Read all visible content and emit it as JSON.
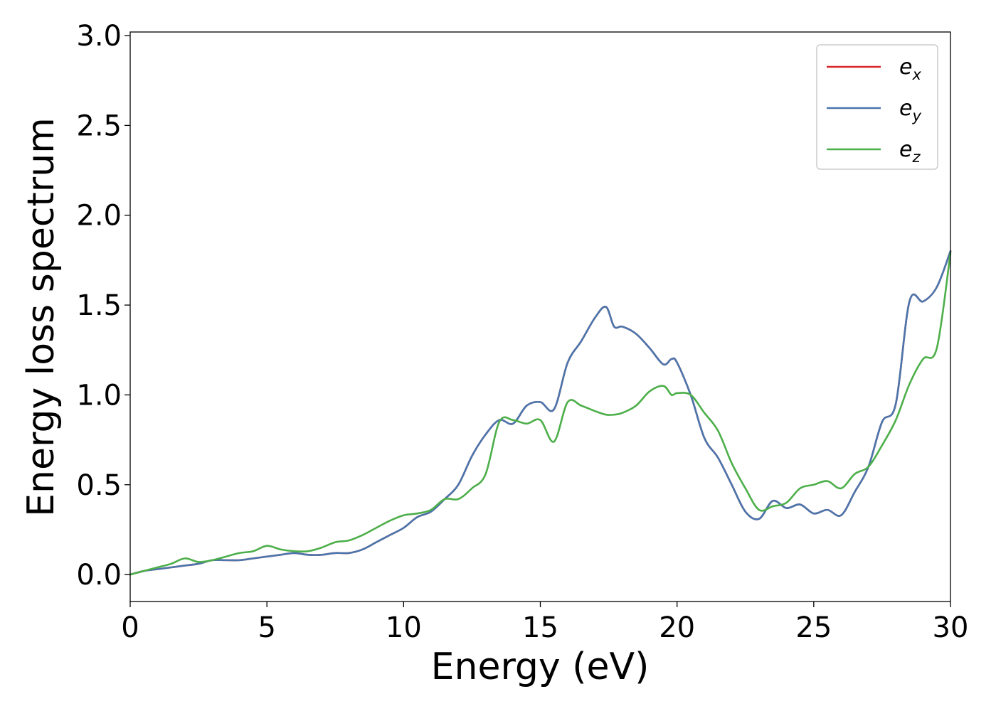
{
  "chart_data": {
    "type": "line",
    "xlabel": "Energy (eV)",
    "ylabel": "Energy loss spectrum",
    "xlim": [
      0,
      30
    ],
    "ylim": [
      -0.15,
      3.02
    ],
    "xticks": [
      0,
      5,
      10,
      15,
      20,
      25,
      30
    ],
    "yticks": [
      0.0,
      0.5,
      1.0,
      1.5,
      2.0,
      2.5,
      3.0
    ],
    "xtick_labels": [
      "0",
      "5",
      "10",
      "15",
      "20",
      "25",
      "30"
    ],
    "ytick_labels": [
      "0.0",
      "0.5",
      "1.0",
      "1.5",
      "2.0",
      "2.5",
      "3.0"
    ],
    "grid": false,
    "legend": {
      "position": "top-right"
    },
    "x": [
      0,
      0.5,
      1,
      1.5,
      2,
      2.5,
      3,
      3.5,
      4,
      4.5,
      5,
      5.5,
      6,
      6.5,
      7,
      7.5,
      8,
      8.5,
      9,
      9.5,
      10,
      10.5,
      11,
      11.5,
      12,
      12.5,
      13,
      13.5,
      14,
      14.5,
      15,
      15.5,
      16,
      16.5,
      17,
      17.4,
      17.7,
      18,
      18.5,
      19,
      19.5,
      19.8,
      20,
      20.5,
      21,
      21.5,
      22,
      22.5,
      23,
      23.5,
      24,
      24.5,
      25,
      25.5,
      26,
      26.5,
      27,
      27.5,
      28,
      28.5,
      29,
      29.5,
      30
    ],
    "series": [
      {
        "name": "e",
        "sub": "x",
        "color": "#d62728",
        "values": [
          0,
          0.02,
          0.03,
          0.04,
          0.05,
          0.06,
          0.08,
          0.08,
          0.08,
          0.09,
          0.1,
          0.11,
          0.12,
          0.11,
          0.11,
          0.12,
          0.12,
          0.14,
          0.18,
          0.22,
          0.26,
          0.32,
          0.35,
          0.42,
          0.5,
          0.66,
          0.78,
          0.86,
          0.84,
          0.94,
          0.96,
          0.92,
          1.18,
          1.3,
          1.43,
          1.49,
          1.38,
          1.38,
          1.34,
          1.26,
          1.17,
          1.2,
          1.18,
          1.0,
          0.76,
          0.65,
          0.5,
          0.35,
          0.31,
          0.41,
          0.37,
          0.39,
          0.34,
          0.36,
          0.33,
          0.46,
          0.6,
          0.85,
          0.95,
          1.52,
          1.52,
          1.6,
          1.8
        ]
      },
      {
        "name": "e",
        "sub": "y",
        "color": "#4a76ad",
        "values": [
          0,
          0.02,
          0.03,
          0.04,
          0.05,
          0.06,
          0.08,
          0.08,
          0.08,
          0.09,
          0.1,
          0.11,
          0.12,
          0.11,
          0.11,
          0.12,
          0.12,
          0.14,
          0.18,
          0.22,
          0.26,
          0.32,
          0.35,
          0.42,
          0.5,
          0.66,
          0.78,
          0.86,
          0.84,
          0.94,
          0.96,
          0.92,
          1.18,
          1.3,
          1.43,
          1.49,
          1.38,
          1.38,
          1.34,
          1.26,
          1.17,
          1.2,
          1.18,
          1.0,
          0.76,
          0.65,
          0.5,
          0.35,
          0.31,
          0.41,
          0.37,
          0.39,
          0.34,
          0.36,
          0.33,
          0.46,
          0.6,
          0.85,
          0.95,
          1.52,
          1.52,
          1.6,
          1.8
        ]
      },
      {
        "name": "e",
        "sub": "z",
        "color": "#4daf4a",
        "values": [
          0,
          0.02,
          0.04,
          0.06,
          0.09,
          0.07,
          0.08,
          0.1,
          0.12,
          0.13,
          0.16,
          0.14,
          0.13,
          0.13,
          0.15,
          0.18,
          0.19,
          0.22,
          0.26,
          0.3,
          0.33,
          0.34,
          0.36,
          0.42,
          0.42,
          0.48,
          0.56,
          0.85,
          0.86,
          0.84,
          0.86,
          0.74,
          0.96,
          0.94,
          0.91,
          0.89,
          0.89,
          0.9,
          0.94,
          1.02,
          1.05,
          1.0,
          1.01,
          1.0,
          0.9,
          0.8,
          0.62,
          0.48,
          0.36,
          0.38,
          0.4,
          0.48,
          0.5,
          0.52,
          0.48,
          0.56,
          0.6,
          0.72,
          0.86,
          1.06,
          1.2,
          1.26,
          1.79
        ]
      }
    ]
  }
}
